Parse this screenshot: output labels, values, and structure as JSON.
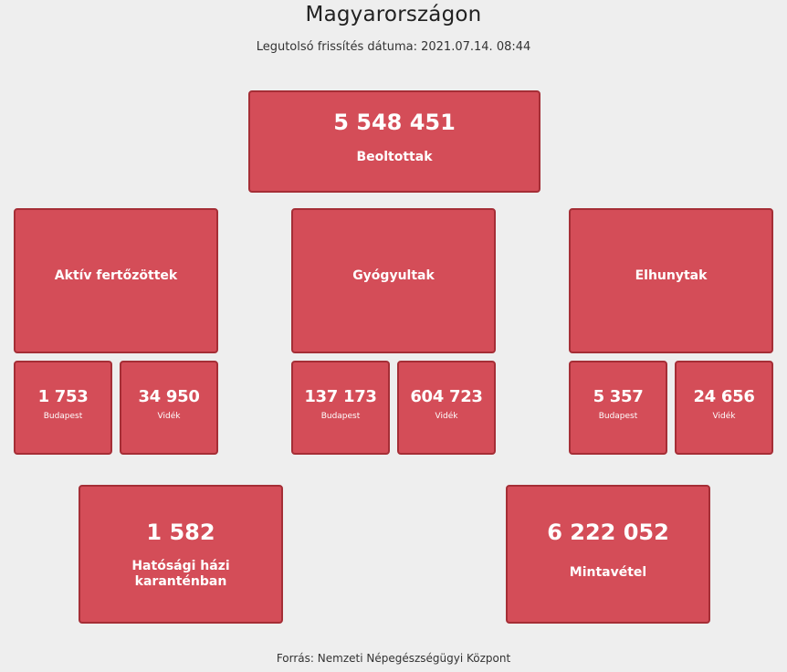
{
  "header": {
    "title": "Magyarországon",
    "last_update": "Legutolsó frissítés dátuma: 2021.07.14. 08:44"
  },
  "vaccinated": {
    "value": "5 548 451",
    "label": "Beoltottak"
  },
  "categories": [
    {
      "label": "Aktív fertőzöttek",
      "budapest": {
        "value": "1 753",
        "label": "Budapest"
      },
      "videk": {
        "value": "34 950",
        "label": "Vidék"
      }
    },
    {
      "label": "Gyógyultak",
      "budapest": {
        "value": "137 173",
        "label": "Budapest"
      },
      "videk": {
        "value": "604 723",
        "label": "Vidék"
      }
    },
    {
      "label": "Elhunytak",
      "budapest": {
        "value": "5 357",
        "label": "Budapest"
      },
      "videk": {
        "value": "24 656",
        "label": "Vidék"
      }
    }
  ],
  "quarantine": {
    "value": "1 582",
    "label_line1": "Hatósági házi",
    "label_line2": "karanténban"
  },
  "sampling": {
    "value": "6 222 052",
    "label": "Mintavétel"
  },
  "footer": {
    "source": "Forrás: Nemzeti Népegészségügyi Központ"
  },
  "colors": {
    "background": "#eeeeee",
    "box_fill": "#d44d58",
    "box_border": "#a52e36",
    "box_text": "#ffffff"
  }
}
